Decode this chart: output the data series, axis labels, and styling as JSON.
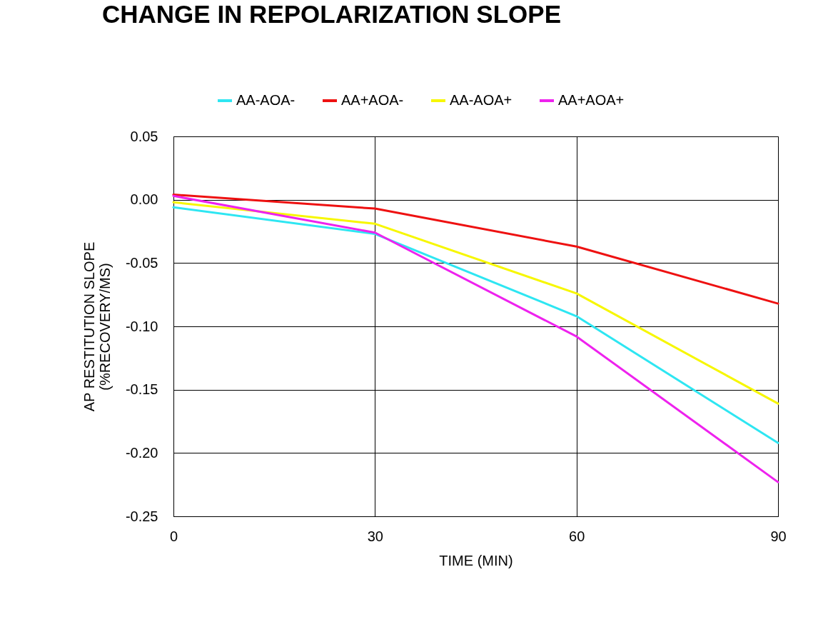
{
  "chart_data": {
    "type": "line",
    "title": "CHANGE IN REPOLARIZATION SLOPE",
    "xlabel": "TIME (MIN)",
    "ylabel": "AP RESTITUTION SLOPE\n(%RECOVERY/MS)",
    "x": [
      0,
      30,
      60,
      90
    ],
    "series": [
      {
        "name": "AA-AOA-",
        "color": "#2ee6f2",
        "values": [
          -0.006,
          -0.027,
          -0.092,
          -0.192
        ]
      },
      {
        "name": "AA+AOA-",
        "color": "#ee1111",
        "values": [
          0.004,
          -0.007,
          -0.037,
          -0.082
        ]
      },
      {
        "name": "AA-AOA+",
        "color": "#f7f700",
        "values": [
          -0.002,
          -0.019,
          -0.074,
          -0.161
        ]
      },
      {
        "name": "AA+AOA+",
        "color": "#ee22ee",
        "values": [
          0.003,
          -0.026,
          -0.108,
          -0.223
        ]
      }
    ],
    "xlim": [
      0,
      90
    ],
    "xticks": [
      0,
      30,
      60,
      90
    ],
    "ylim": [
      -0.25,
      0.05
    ],
    "yticks": [
      {
        "value": -0.25,
        "label": "-0.25"
      },
      {
        "value": -0.2,
        "label": "-0.20"
      },
      {
        "value": -0.15,
        "label": "-0.15"
      },
      {
        "value": -0.1,
        "label": "-0.10"
      },
      {
        "value": -0.05,
        "label": "-0.05"
      },
      {
        "value": 0,
        "label": "0.00"
      },
      {
        "value": 0.05,
        "label": "0.05"
      }
    ],
    "grid": true,
    "legend": "top",
    "marker": "none",
    "line_style": "solid"
  }
}
